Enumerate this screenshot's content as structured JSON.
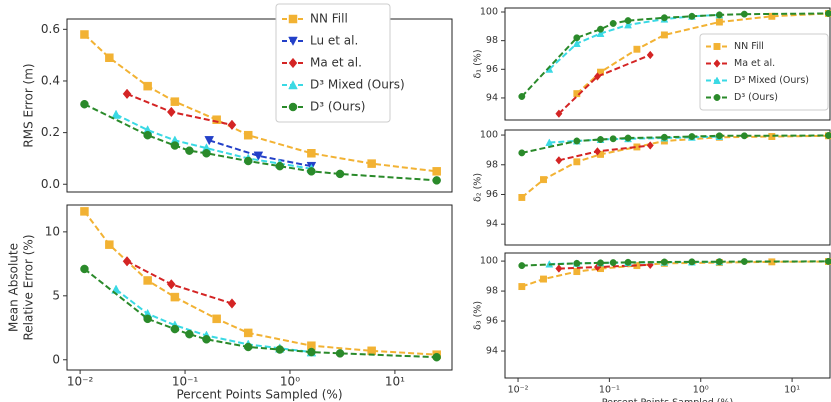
{
  "chart_data": [
    {
      "type": "line",
      "log_x": true,
      "xlim": [
        0.0075,
        35
      ],
      "ylim": [
        -0.03,
        0.64
      ],
      "yticks": [
        {
          "value": 0,
          "label": "0.0"
        },
        0.2,
        0.4,
        0.6
      ],
      "ylabel": [
        "RMS Error (m)"
      ],
      "legend": "upper right",
      "series": [
        {
          "name": "NN Fill",
          "color": "#f2b233",
          "marker": "square",
          "x": [
            0.011,
            0.019,
            0.044,
            0.08,
            0.2,
            0.4,
            1.6,
            6,
            25
          ],
          "values": [
            0.58,
            0.49,
            0.38,
            0.32,
            0.25,
            0.19,
            0.12,
            0.08,
            0.05
          ]
        },
        {
          "name": "Lu et al.",
          "color": "#2340c8",
          "marker": "tri-down",
          "x": [
            0.17,
            0.5,
            1.6
          ],
          "values": [
            0.17,
            0.11,
            0.07
          ]
        },
        {
          "name": "Ma et al.",
          "color": "#d42424",
          "marker": "diamond",
          "x": [
            0.028,
            0.074,
            0.28
          ],
          "values": [
            0.35,
            0.28,
            0.23
          ]
        },
        {
          "name": "D³ Mixed (Ours)",
          "color": "#3ad9e4",
          "marker": "tri-up",
          "x": [
            0.022,
            0.044,
            0.08,
            0.16,
            0.4,
            0.8,
            1.6
          ],
          "values": [
            0.27,
            0.21,
            0.17,
            0.14,
            0.1,
            0.08,
            0.06
          ]
        },
        {
          "name": "D³ (Ours)",
          "color": "#2a8a2a",
          "marker": "circle",
          "x": [
            0.011,
            0.044,
            0.08,
            0.11,
            0.16,
            0.4,
            0.8,
            1.6,
            3,
            25
          ],
          "values": [
            0.31,
            0.19,
            0.15,
            0.13,
            0.12,
            0.09,
            0.07,
            0.05,
            0.04,
            0.015
          ]
        }
      ]
    },
    {
      "type": "line",
      "log_x": true,
      "xlim": [
        0.0075,
        35
      ],
      "ylim": [
        -0.8,
        12.1
      ],
      "yticks": [
        0,
        5,
        10
      ],
      "xticks": [
        {
          "value": 0.01,
          "label": "10⁻²"
        },
        {
          "value": 0.1,
          "label": "10⁻¹"
        },
        {
          "value": 1,
          "label": "10⁰"
        },
        {
          "value": 10,
          "label": "10¹"
        }
      ],
      "xlabel": "Percent Points Sampled (%)",
      "ylabel": [
        "Mean Absolute",
        "Relative Error (%)"
      ],
      "series": [
        {
          "name": "NN Fill",
          "color": "#f2b233",
          "marker": "square",
          "x": [
            0.011,
            0.019,
            0.044,
            0.08,
            0.2,
            0.4,
            1.6,
            6,
            25
          ],
          "values": [
            11.6,
            9.0,
            6.2,
            4.9,
            3.2,
            2.1,
            1.1,
            0.7,
            0.4
          ]
        },
        {
          "name": "Ma et al.",
          "color": "#d42424",
          "marker": "diamond",
          "x": [
            0.028,
            0.074,
            0.28
          ],
          "values": [
            7.7,
            5.9,
            4.4
          ]
        },
        {
          "name": "D³ Mixed (Ours)",
          "color": "#3ad9e4",
          "marker": "tri-up",
          "x": [
            0.022,
            0.044,
            0.08,
            0.16,
            0.4,
            0.8,
            1.6
          ],
          "values": [
            5.5,
            3.6,
            2.7,
            1.9,
            1.2,
            0.9,
            0.6
          ]
        },
        {
          "name": "D³ (Ours)",
          "color": "#2a8a2a",
          "marker": "circle",
          "x": [
            0.011,
            0.044,
            0.08,
            0.11,
            0.16,
            0.4,
            0.8,
            1.6,
            3,
            25
          ],
          "values": [
            7.1,
            3.2,
            2.4,
            2.0,
            1.6,
            1.0,
            0.8,
            0.6,
            0.5,
            0.2
          ]
        }
      ]
    },
    {
      "type": "line",
      "log_x": true,
      "xlim": [
        0.0072,
        26
      ],
      "ylim": [
        92.46,
        100.28
      ],
      "yticks": [
        94,
        96,
        98,
        100
      ],
      "ylabel": [
        "δ₁ (%)"
      ],
      "legend": "lower right",
      "series": [
        {
          "name": "NN Fill",
          "color": "#f2b233",
          "marker": "square",
          "x": [
            0.044,
            0.08,
            0.2,
            0.4,
            1.6,
            6,
            25
          ],
          "values": [
            94.3,
            95.8,
            97.4,
            98.4,
            99.3,
            99.7,
            99.9
          ]
        },
        {
          "name": "Ma et al.",
          "color": "#d42424",
          "marker": "diamond",
          "x": [
            0.028,
            0.074,
            0.28
          ],
          "values": [
            92.9,
            95.5,
            97.0
          ]
        },
        {
          "name": "D³ Mixed (Ours)",
          "color": "#3ad9e4",
          "marker": "tri-up",
          "x": [
            0.022,
            0.044,
            0.08,
            0.16,
            0.4,
            0.8,
            1.6
          ],
          "values": [
            96.0,
            97.8,
            98.5,
            99.1,
            99.5,
            99.7,
            99.8
          ]
        },
        {
          "name": "D³ (Ours)",
          "color": "#2a8a2a",
          "marker": "circle",
          "x": [
            0.011,
            0.044,
            0.08,
            0.11,
            0.16,
            0.4,
            0.8,
            1.6,
            3,
            25
          ],
          "values": [
            94.1,
            98.2,
            98.8,
            99.2,
            99.4,
            99.6,
            99.7,
            99.8,
            99.85,
            99.9
          ]
        }
      ]
    },
    {
      "type": "line",
      "log_x": true,
      "xlim": [
        0.0072,
        26
      ],
      "ylim": [
        92.6,
        100.34
      ],
      "yticks": [
        94,
        96,
        98,
        100
      ],
      "ylabel": [
        "δ₂ (%)"
      ],
      "series": [
        {
          "name": "NN Fill",
          "color": "#f2b233",
          "marker": "square",
          "x": [
            0.011,
            0.019,
            0.044,
            0.08,
            0.2,
            0.4,
            1.6,
            6,
            25
          ],
          "values": [
            95.8,
            97.0,
            98.2,
            98.7,
            99.2,
            99.6,
            99.85,
            99.9,
            99.95
          ]
        },
        {
          "name": "Ma et al.",
          "color": "#d42424",
          "marker": "diamond",
          "x": [
            0.028,
            0.074,
            0.28
          ],
          "values": [
            98.3,
            98.9,
            99.3
          ]
        },
        {
          "name": "D³ Mixed (Ours)",
          "color": "#3ad9e4",
          "marker": "tri-up",
          "x": [
            0.022,
            0.044,
            0.08,
            0.16,
            0.4,
            0.8,
            1.6
          ],
          "values": [
            99.5,
            99.6,
            99.7,
            99.75,
            99.8,
            99.85,
            99.9
          ]
        },
        {
          "name": "D³ (Ours)",
          "color": "#2a8a2a",
          "marker": "circle",
          "x": [
            0.011,
            0.044,
            0.08,
            0.11,
            0.16,
            0.4,
            0.8,
            1.6,
            3,
            25
          ],
          "values": [
            98.8,
            99.6,
            99.7,
            99.75,
            99.8,
            99.85,
            99.9,
            99.95,
            99.95,
            99.97
          ]
        }
      ]
    },
    {
      "type": "line",
      "log_x": true,
      "xlim": [
        0.0072,
        26
      ],
      "ylim": [
        92.2,
        100.54
      ],
      "yticks": [
        94,
        96,
        98,
        100
      ],
      "xticks": [
        {
          "value": 0.01,
          "label": "10⁻²"
        },
        {
          "value": 0.1,
          "label": "10⁻¹"
        },
        {
          "value": 1,
          "label": "10⁰"
        },
        {
          "value": 10,
          "label": "10¹"
        }
      ],
      "xlabel": "Percent Points Sampled (%)",
      "ylabel": [
        "δ₃ (%)"
      ],
      "series": [
        {
          "name": "NN Fill",
          "color": "#f2b233",
          "marker": "square",
          "x": [
            0.011,
            0.019,
            0.044,
            0.08,
            0.2,
            0.4,
            1.6,
            6,
            25
          ],
          "values": [
            98.3,
            98.8,
            99.3,
            99.5,
            99.7,
            99.85,
            99.9,
            99.95,
            99.97
          ]
        },
        {
          "name": "Ma et al.",
          "color": "#d42424",
          "marker": "diamond",
          "x": [
            0.028,
            0.074,
            0.28
          ],
          "values": [
            99.5,
            99.6,
            99.75
          ]
        },
        {
          "name": "D³ Mixed (Ours)",
          "color": "#3ad9e4",
          "marker": "tri-up",
          "x": [
            0.022,
            0.044,
            0.08,
            0.16,
            0.4,
            0.8,
            1.6
          ],
          "values": [
            99.8,
            99.85,
            99.88,
            99.9,
            99.92,
            99.94,
            99.95
          ]
        },
        {
          "name": "D³ (Ours)",
          "color": "#2a8a2a",
          "marker": "circle",
          "x": [
            0.011,
            0.044,
            0.08,
            0.11,
            0.16,
            0.4,
            0.8,
            1.6,
            3,
            25
          ],
          "values": [
            99.7,
            99.85,
            99.88,
            99.9,
            99.92,
            99.94,
            99.95,
            99.96,
            99.97,
            99.98
          ]
        }
      ]
    }
  ]
}
